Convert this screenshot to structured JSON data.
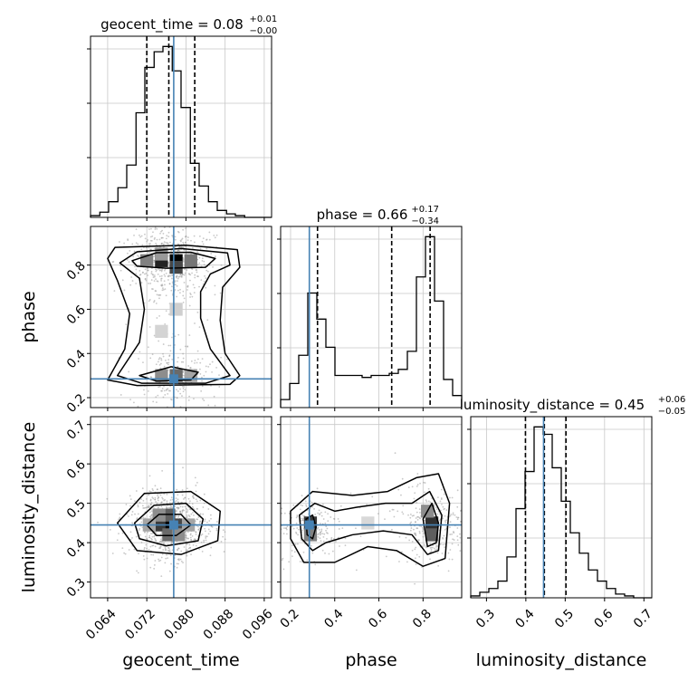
{
  "chart_data": {
    "type": "corner",
    "parameters": [
      "geocent_time",
      "phase",
      "luminosity_distance"
    ],
    "truths": [
      0.0775,
      0.285,
      0.445
    ],
    "truth_color": "#4682b4",
    "line_color": "#000000",
    "titles": [
      {
        "text": "geocent_time = 0.08",
        "sup": "+0.01",
        "sub": "−0.00"
      },
      {
        "text": "phase = 0.66",
        "sup": "+0.17",
        "sub": "−0.34"
      },
      {
        "text": "luminosity_distance = 0.45",
        "sup": "+0.06",
        "sub": "−0.05"
      }
    ],
    "axes": {
      "geocent_time": {
        "range": [
          0.0605,
          0.0975
        ],
        "ticks": [
          0.064,
          0.072,
          0.08,
          0.088,
          0.096
        ],
        "tick_labels": [
          "0.064",
          "0.072",
          "0.080",
          "0.088",
          "0.096"
        ]
      },
      "phase": {
        "range": [
          0.155,
          0.975
        ],
        "ticks": [
          0.2,
          0.4,
          0.6,
          0.8
        ],
        "tick_labels": [
          "0.2",
          "0.4",
          "0.6",
          "0.8"
        ]
      },
      "luminosity_distance": {
        "range": [
          0.26,
          0.72
        ],
        "ticks": [
          0.3,
          0.4,
          0.5,
          0.6,
          0.7
        ],
        "tick_labels": [
          "0.3",
          "0.4",
          "0.5",
          "0.6",
          "0.7"
        ]
      }
    },
    "histograms": {
      "geocent_time": {
        "edges": [
          0.0605,
          0.0624,
          0.0642,
          0.0661,
          0.0679,
          0.0698,
          0.0716,
          0.0735,
          0.0753,
          0.0772,
          0.079,
          0.0809,
          0.0827,
          0.0846,
          0.0864,
          0.0883,
          0.0901,
          0.092,
          0.0938,
          0.0957,
          0.0975
        ],
        "counts": [
          1,
          3,
          9,
          17,
          30,
          60,
          86,
          95,
          98,
          84,
          63,
          31,
          18,
          9,
          4,
          2,
          1,
          0,
          0,
          0
        ],
        "quantiles": [
          0.072,
          0.0765,
          0.0818
        ]
      },
      "phase": {
        "edges": [
          0.155,
          0.196,
          0.237,
          0.278,
          0.319,
          0.36,
          0.401,
          0.442,
          0.483,
          0.524,
          0.565,
          0.606,
          0.647,
          0.688,
          0.729,
          0.77,
          0.811,
          0.852,
          0.893,
          0.934,
          0.975
        ],
        "counts": [
          4,
          12,
          26,
          57,
          44,
          30,
          16,
          16,
          16,
          15,
          16,
          16,
          17,
          19,
          28,
          65,
          85,
          53,
          14,
          6
        ],
        "quantiles": [
          0.322,
          0.658,
          0.832
        ]
      },
      "luminosity_distance": {
        "edges": [
          0.26,
          0.283,
          0.306,
          0.329,
          0.352,
          0.375,
          0.398,
          0.421,
          0.444,
          0.467,
          0.49,
          0.513,
          0.536,
          0.559,
          0.582,
          0.605,
          0.628,
          0.651,
          0.674,
          0.697,
          0.72
        ],
        "counts": [
          1,
          3,
          5,
          9,
          22,
          48,
          68,
          92,
          88,
          70,
          52,
          35,
          24,
          15,
          9,
          5,
          2,
          1,
          0,
          0
        ],
        "quantiles": [
          0.399,
          0.447,
          0.502
        ]
      }
    },
    "scatter_panels": [
      {
        "x": "geocent_time",
        "y": "phase",
        "density_cells": [
          {
            "x": 0.075,
            "y": 0.82,
            "v": 0.85
          },
          {
            "x": 0.078,
            "y": 0.82,
            "v": 1.0
          },
          {
            "x": 0.072,
            "y": 0.82,
            "v": 0.45
          },
          {
            "x": 0.081,
            "y": 0.82,
            "v": 0.5
          },
          {
            "x": 0.078,
            "y": 0.79,
            "v": 0.7
          },
          {
            "x": 0.075,
            "y": 0.85,
            "v": 0.35
          },
          {
            "x": 0.078,
            "y": 0.3,
            "v": 0.55
          },
          {
            "x": 0.075,
            "y": 0.3,
            "v": 0.4
          },
          {
            "x": 0.081,
            "y": 0.3,
            "v": 0.3
          },
          {
            "x": 0.078,
            "y": 0.6,
            "v": 0.12
          },
          {
            "x": 0.075,
            "y": 0.5,
            "v": 0.1
          }
        ],
        "contours": [
          [
            [
              0.069,
              0.82
            ],
            [
              0.074,
              0.856
            ],
            [
              0.081,
              0.858
            ],
            [
              0.086,
              0.83
            ],
            [
              0.084,
              0.79
            ],
            [
              0.076,
              0.786
            ],
            [
              0.07,
              0.795
            ]
          ],
          [
            [
              0.0665,
              0.81
            ],
            [
              0.07,
              0.86
            ],
            [
              0.079,
              0.875
            ],
            [
              0.0885,
              0.855
            ],
            [
              0.089,
              0.8
            ],
            [
              0.085,
              0.76
            ],
            [
              0.083,
              0.68
            ],
            [
              0.083,
              0.56
            ],
            [
              0.085,
              0.42
            ],
            [
              0.089,
              0.3
            ],
            [
              0.084,
              0.265
            ],
            [
              0.071,
              0.265
            ],
            [
              0.066,
              0.3
            ],
            [
              0.0705,
              0.45
            ],
            [
              0.0715,
              0.6
            ],
            [
              0.0705,
              0.74
            ]
          ],
          [
            [
              0.064,
              0.83
            ],
            [
              0.0655,
              0.88
            ],
            [
              0.08,
              0.89
            ],
            [
              0.0905,
              0.87
            ],
            [
              0.091,
              0.79
            ],
            [
              0.0875,
              0.7
            ],
            [
              0.087,
              0.55
            ],
            [
              0.088,
              0.4
            ],
            [
              0.091,
              0.3
            ],
            [
              0.089,
              0.26
            ],
            [
              0.07,
              0.255
            ],
            [
              0.064,
              0.28
            ],
            [
              0.0675,
              0.42
            ],
            [
              0.0685,
              0.58
            ],
            [
              0.066,
              0.73
            ]
          ],
          [
            [
              0.0705,
              0.3
            ],
            [
              0.077,
              0.34
            ],
            [
              0.0825,
              0.315
            ],
            [
              0.081,
              0.28
            ],
            [
              0.074,
              0.275
            ]
          ]
        ]
      },
      {
        "x": "geocent_time",
        "y": "luminosity_distance",
        "density_cells": [
          {
            "x": 0.0765,
            "y": 0.445,
            "v": 1.0
          },
          {
            "x": 0.0745,
            "y": 0.445,
            "v": 0.75
          },
          {
            "x": 0.0785,
            "y": 0.445,
            "v": 0.7
          },
          {
            "x": 0.0765,
            "y": 0.47,
            "v": 0.6
          },
          {
            "x": 0.0765,
            "y": 0.42,
            "v": 0.55
          },
          {
            "x": 0.0745,
            "y": 0.47,
            "v": 0.4
          },
          {
            "x": 0.0785,
            "y": 0.42,
            "v": 0.4
          },
          {
            "x": 0.0725,
            "y": 0.445,
            "v": 0.3
          },
          {
            "x": 0.0805,
            "y": 0.445,
            "v": 0.3
          }
        ],
        "contours": [
          [
            [
              0.072,
              0.445
            ],
            [
              0.0745,
              0.472
            ],
            [
              0.079,
              0.472
            ],
            [
              0.081,
              0.445
            ],
            [
              0.078,
              0.418
            ],
            [
              0.074,
              0.418
            ]
          ],
          [
            [
              0.0695,
              0.45
            ],
            [
              0.0735,
              0.495
            ],
            [
              0.08,
              0.5
            ],
            [
              0.0835,
              0.46
            ],
            [
              0.0825,
              0.405
            ],
            [
              0.076,
              0.392
            ],
            [
              0.0705,
              0.41
            ]
          ],
          [
            [
              0.066,
              0.45
            ],
            [
              0.0715,
              0.525
            ],
            [
              0.081,
              0.53
            ],
            [
              0.087,
              0.48
            ],
            [
              0.0865,
              0.405
            ],
            [
              0.079,
              0.37
            ],
            [
              0.07,
              0.38
            ]
          ]
        ]
      },
      {
        "x": "phase",
        "y": "luminosity_distance",
        "density_cells": [
          {
            "x": 0.29,
            "y": 0.45,
            "v": 0.75
          },
          {
            "x": 0.29,
            "y": 0.42,
            "v": 0.45
          },
          {
            "x": 0.84,
            "y": 0.45,
            "v": 0.8
          },
          {
            "x": 0.84,
            "y": 0.42,
            "v": 0.6
          },
          {
            "x": 0.82,
            "y": 0.48,
            "v": 0.4
          },
          {
            "x": 0.55,
            "y": 0.45,
            "v": 0.08
          }
        ],
        "contours": [
          [
            [
              0.27,
              0.46
            ],
            [
              0.3,
              0.47
            ],
            [
              0.315,
              0.44
            ],
            [
              0.3,
              0.41
            ],
            [
              0.275,
              0.42
            ]
          ],
          [
            [
              0.8,
              0.46
            ],
            [
              0.84,
              0.5
            ],
            [
              0.87,
              0.45
            ],
            [
              0.86,
              0.4
            ],
            [
              0.82,
              0.39
            ]
          ],
          [
            [
              0.24,
              0.47
            ],
            [
              0.31,
              0.5
            ],
            [
              0.4,
              0.48
            ],
            [
              0.5,
              0.49
            ],
            [
              0.63,
              0.5
            ],
            [
              0.75,
              0.5
            ],
            [
              0.83,
              0.53
            ],
            [
              0.885,
              0.47
            ],
            [
              0.87,
              0.38
            ],
            [
              0.82,
              0.37
            ],
            [
              0.75,
              0.42
            ],
            [
              0.62,
              0.43
            ],
            [
              0.48,
              0.42
            ],
            [
              0.36,
              0.4
            ],
            [
              0.3,
              0.38
            ],
            [
              0.25,
              0.41
            ]
          ],
          [
            [
              0.2,
              0.48
            ],
            [
              0.3,
              0.53
            ],
            [
              0.48,
              0.52
            ],
            [
              0.64,
              0.53
            ],
            [
              0.77,
              0.565
            ],
            [
              0.87,
              0.575
            ],
            [
              0.92,
              0.5
            ],
            [
              0.9,
              0.36
            ],
            [
              0.8,
              0.34
            ],
            [
              0.68,
              0.38
            ],
            [
              0.55,
              0.39
            ],
            [
              0.4,
              0.35
            ],
            [
              0.26,
              0.35
            ],
            [
              0.2,
              0.41
            ]
          ]
        ]
      }
    ],
    "grid": true
  }
}
